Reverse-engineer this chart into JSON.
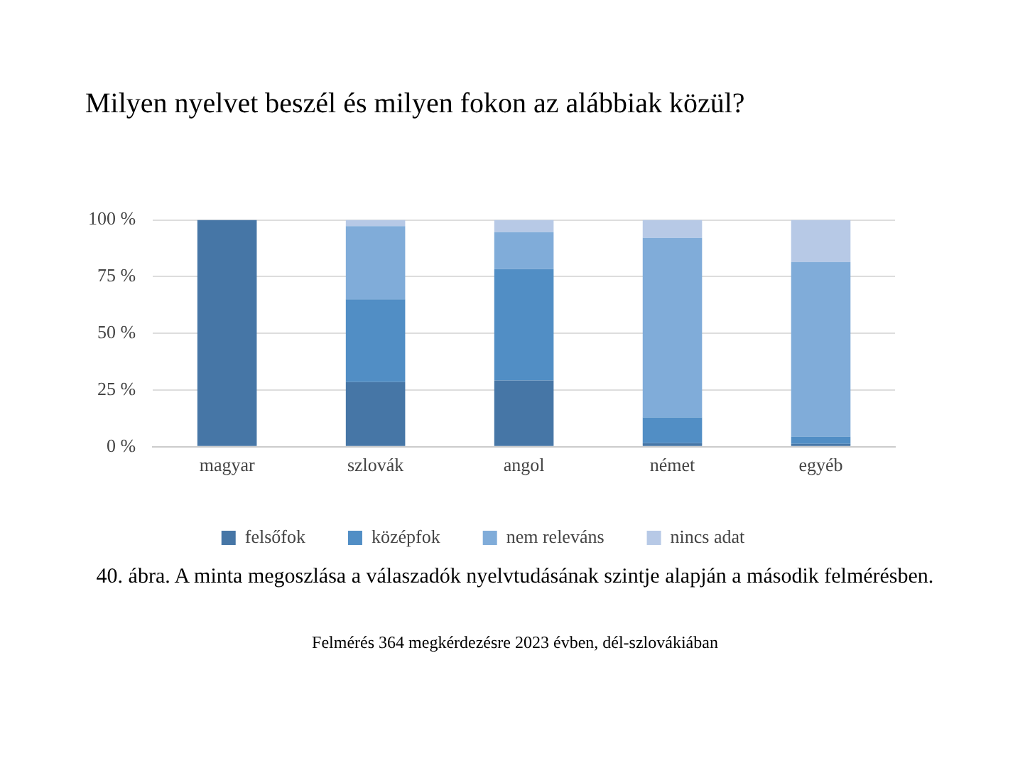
{
  "chart_data": {
    "type": "bar",
    "title": "Milyen nyelvet beszél és milyen fokon az alábbiak közül?",
    "categories": [
      "magyar",
      "szlovák",
      "angol",
      "német",
      "egyéb"
    ],
    "stacked": true,
    "series": [
      {
        "name": "felsőfok",
        "color": "#4676a6",
        "values": [
          100,
          28.5,
          29.2,
          1.6,
          1.3
        ]
      },
      {
        "name": "középfok",
        "color": "#518ec5",
        "values": [
          0,
          36.5,
          49.1,
          11.3,
          3.2
        ]
      },
      {
        "name": "nem releváns",
        "color": "#80acd9",
        "values": [
          0,
          32.3,
          16.3,
          79.2,
          77
        ]
      },
      {
        "name": "nincs adat",
        "color": "#b7c9e6",
        "values": [
          0,
          2.7,
          5.4,
          7.9,
          18.5
        ]
      }
    ],
    "ylim": [
      0,
      100
    ],
    "yticks": [
      {
        "value": 0,
        "label": "0 %"
      },
      {
        "value": 25,
        "label": "25 %"
      },
      {
        "value": 50,
        "label": "50 %"
      },
      {
        "value": 75,
        "label": "75 %"
      },
      {
        "value": 100,
        "label": "100 %"
      }
    ],
    "grid": "y",
    "legend": "bottom",
    "annotations": [
      "40. ábra. A minta megoszlása a válaszadók nyelvtudásának szintje alapján a második felmérésben.",
      "Felmérés 364 megkérdezésre 2023 évben, dél-szlovákiában"
    ]
  }
}
